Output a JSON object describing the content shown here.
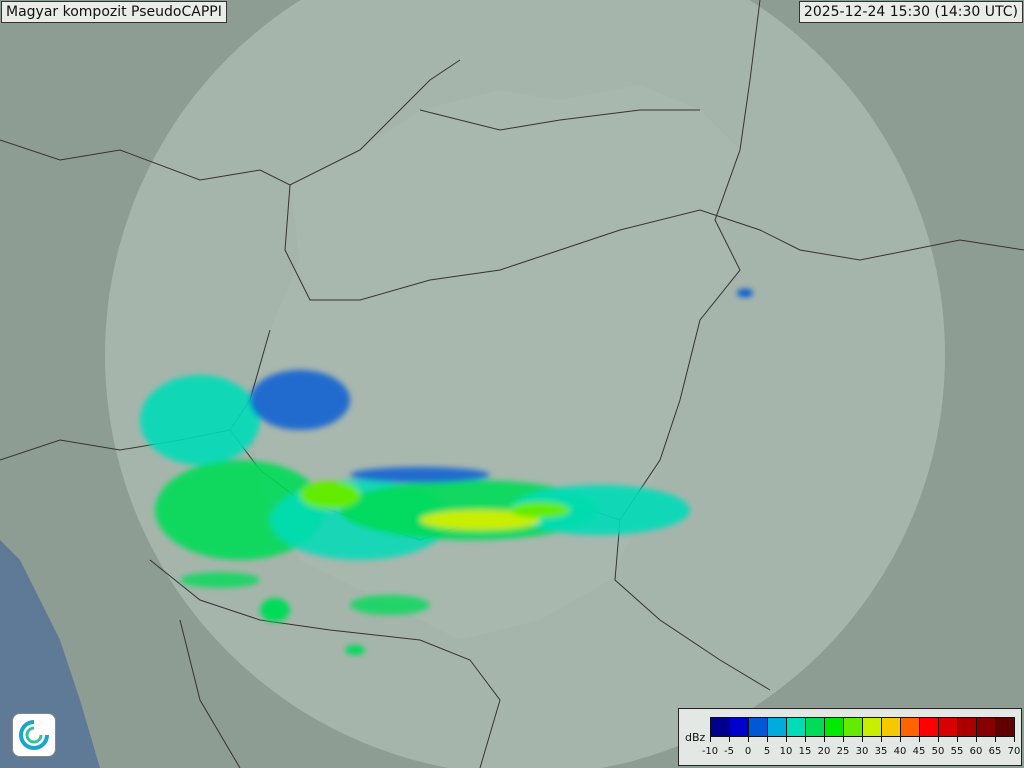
{
  "header": {
    "title": "Magyar kompozit  PseudoCAPPI",
    "timestamp": "2025-12-24 15:30 (14:30 UTC)"
  },
  "legend": {
    "unit": "dBz",
    "ticks": [
      "-10",
      "-5",
      "0",
      "5",
      "10",
      "15",
      "20",
      "25",
      "30",
      "35",
      "40",
      "45",
      "50",
      "55",
      "60",
      "65",
      "70"
    ],
    "colors": [
      "#00008e",
      "#0000cc",
      "#0058d6",
      "#00acdc",
      "#00dcb8",
      "#00dc58",
      "#00ea00",
      "#64ec00",
      "#c8ee00",
      "#f6c800",
      "#ff6400",
      "#ff0000",
      "#d80000",
      "#ac0000",
      "#880000",
      "#600000"
    ]
  },
  "map": {
    "background_color": "#8e9d93",
    "coverage_color": "#c4d2ca",
    "border_color": "#333333",
    "logo_icon": "met-service-swirl-icon"
  }
}
